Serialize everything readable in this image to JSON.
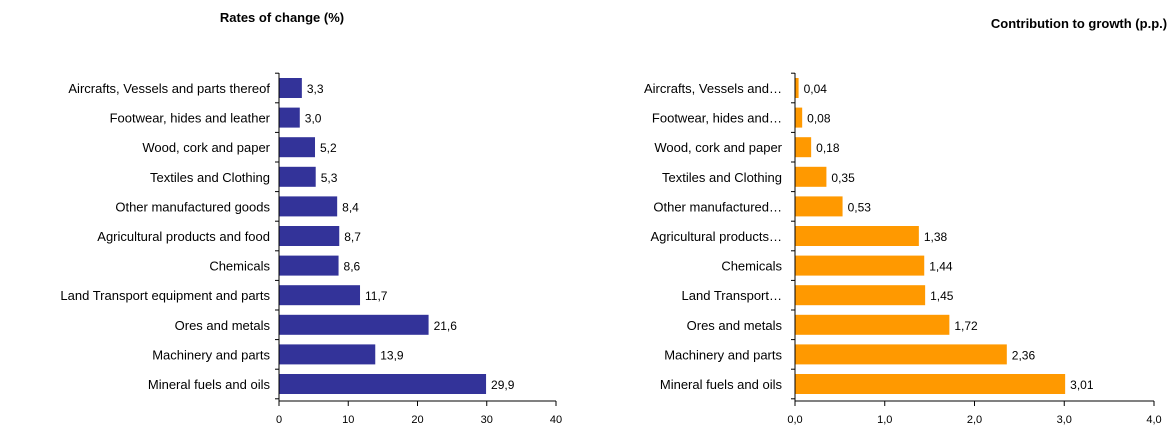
{
  "chart_data": [
    {
      "type": "bar",
      "orientation": "horizontal",
      "title": "Rates of change (%)",
      "categories": [
        "Aircrafts, Vessels and parts thereof",
        "Footwear, hides and leather",
        "Wood, cork and paper",
        "Textiles and Clothing",
        "Other manufactured goods",
        "Agricultural products and food",
        "Chemicals",
        "Land Transport equipment and parts",
        "Ores and metals",
        "Machinery and parts",
        "Mineral fuels and oils"
      ],
      "values": [
        3.3,
        3.0,
        5.2,
        5.3,
        8.4,
        8.7,
        8.6,
        11.7,
        21.6,
        13.9,
        29.9
      ],
      "value_labels": [
        "3,3",
        "3,0",
        "5,2",
        "5,3",
        "8,4",
        "8,7",
        "8,6",
        "11,7",
        "21,6",
        "13,9",
        "29,9"
      ],
      "xlim": [
        0,
        40
      ],
      "ticks": [
        0,
        10,
        20,
        30,
        40
      ],
      "tick_labels": [
        "0",
        "10",
        "20",
        "30",
        "40"
      ],
      "color": "#333399",
      "grid": false,
      "legend": "none"
    },
    {
      "type": "bar",
      "orientation": "horizontal",
      "title": "Contribution to growth (p.p.)",
      "categories": [
        "Aircrafts, Vessels and…",
        "Footwear, hides and…",
        "Wood, cork and paper",
        "Textiles and Clothing",
        "Other manufactured…",
        "Agricultural products…",
        "Chemicals",
        "Land Transport…",
        "Ores and metals",
        "Machinery and parts",
        "Mineral fuels and oils"
      ],
      "values": [
        0.04,
        0.08,
        0.18,
        0.35,
        0.53,
        1.38,
        1.44,
        1.45,
        1.72,
        2.36,
        3.01
      ],
      "value_labels": [
        "0,04",
        "0,08",
        "0,18",
        "0,35",
        "0,53",
        "1,38",
        "1,44",
        "1,45",
        "1,72",
        "2,36",
        "3,01"
      ],
      "xlim": [
        0,
        4
      ],
      "ticks": [
        0,
        1,
        2,
        3,
        4
      ],
      "tick_labels": [
        "0,0",
        "1,0",
        "2,0",
        "3,0",
        "4,0"
      ],
      "color": "#FF9900",
      "grid": false,
      "legend": "none"
    }
  ]
}
